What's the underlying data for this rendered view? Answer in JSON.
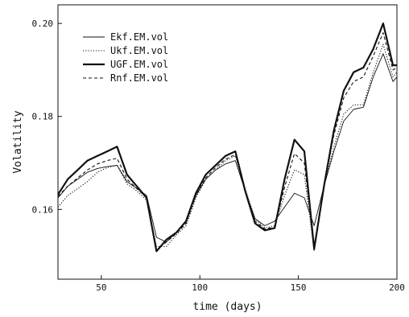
{
  "chart_data": {
    "type": "line",
    "title": "",
    "xlabel": "time (days)",
    "ylabel": "Volatility",
    "xlim": [
      28,
      200
    ],
    "ylim": [
      0.145,
      0.204
    ],
    "xticks": [
      50,
      100,
      150,
      200
    ],
    "yticks": [
      0.16,
      0.18,
      0.2
    ],
    "ytick_labels": [
      "0.16",
      "0.18",
      "0.20"
    ],
    "grid": false,
    "legend": "top-left",
    "series": [
      {
        "name": "Ekf.EM.vol",
        "style": "thin-solid",
        "x": [
          28,
          33,
          38,
          43,
          48,
          53,
          58,
          63,
          68,
          73,
          78,
          83,
          88,
          93,
          98,
          103,
          108,
          113,
          118,
          123,
          128,
          133,
          138,
          143,
          148,
          153,
          158,
          163,
          168,
          173,
          178,
          183,
          188,
          193,
          198,
          200
        ],
        "y": [
          0.1625,
          0.165,
          0.1665,
          0.168,
          0.1688,
          0.1692,
          0.1695,
          0.166,
          0.1645,
          0.163,
          0.154,
          0.153,
          0.155,
          0.1575,
          0.163,
          0.1665,
          0.1685,
          0.1698,
          0.1705,
          0.164,
          0.158,
          0.1565,
          0.1575,
          0.1605,
          0.1635,
          0.1625,
          0.1565,
          0.165,
          0.1725,
          0.179,
          0.1815,
          0.182,
          0.1885,
          0.1935,
          0.1875,
          0.1885
        ]
      },
      {
        "name": "Ukf.EM.vol",
        "style": "dotted",
        "x": [
          28,
          33,
          38,
          43,
          48,
          53,
          58,
          63,
          68,
          73,
          78,
          83,
          88,
          93,
          98,
          103,
          108,
          113,
          118,
          123,
          128,
          133,
          138,
          143,
          148,
          153,
          158,
          163,
          168,
          173,
          178,
          183,
          188,
          193,
          198,
          200
        ],
        "y": [
          0.1605,
          0.163,
          0.1645,
          0.166,
          0.168,
          0.169,
          0.1695,
          0.1655,
          0.164,
          0.162,
          0.152,
          0.152,
          0.1545,
          0.1565,
          0.1625,
          0.1665,
          0.1685,
          0.1705,
          0.1715,
          0.1645,
          0.158,
          0.156,
          0.1565,
          0.163,
          0.1685,
          0.1675,
          0.151,
          0.165,
          0.1735,
          0.1805,
          0.1825,
          0.1825,
          0.1895,
          0.1955,
          0.1885,
          0.1895
        ]
      },
      {
        "name": "UGF.EM.vol",
        "style": "thick-solid",
        "x": [
          28,
          33,
          38,
          43,
          48,
          53,
          58,
          63,
          68,
          73,
          78,
          83,
          88,
          93,
          98,
          103,
          108,
          113,
          118,
          123,
          128,
          133,
          138,
          143,
          148,
          153,
          158,
          163,
          168,
          173,
          178,
          183,
          188,
          193,
          198,
          200
        ],
        "y": [
          0.1632,
          0.1665,
          0.1685,
          0.1705,
          0.1715,
          0.1725,
          0.1735,
          0.1675,
          0.165,
          0.1625,
          0.151,
          0.1535,
          0.155,
          0.1575,
          0.1635,
          0.1675,
          0.1695,
          0.1715,
          0.1725,
          0.164,
          0.157,
          0.1555,
          0.156,
          0.1665,
          0.175,
          0.1725,
          0.1515,
          0.165,
          0.177,
          0.1855,
          0.1895,
          0.1905,
          0.1945,
          0.2,
          0.191,
          0.191
        ]
      },
      {
        "name": "Rnf.EM.vol",
        "style": "dashed",
        "x": [
          28,
          33,
          38,
          43,
          48,
          53,
          58,
          63,
          68,
          73,
          78,
          83,
          88,
          93,
          98,
          103,
          108,
          113,
          118,
          123,
          128,
          133,
          138,
          143,
          148,
          153,
          158,
          163,
          168,
          173,
          178,
          183,
          188,
          193,
          198,
          200
        ],
        "y": [
          0.1628,
          0.165,
          0.1668,
          0.1685,
          0.1698,
          0.1705,
          0.171,
          0.1665,
          0.1645,
          0.1625,
          0.1512,
          0.153,
          0.1548,
          0.157,
          0.163,
          0.1668,
          0.169,
          0.1708,
          0.1718,
          0.1642,
          0.1575,
          0.1558,
          0.1562,
          0.1648,
          0.172,
          0.17,
          0.1518,
          0.165,
          0.176,
          0.184,
          0.1875,
          0.1885,
          0.193,
          0.198,
          0.19,
          0.1905
        ]
      }
    ]
  }
}
